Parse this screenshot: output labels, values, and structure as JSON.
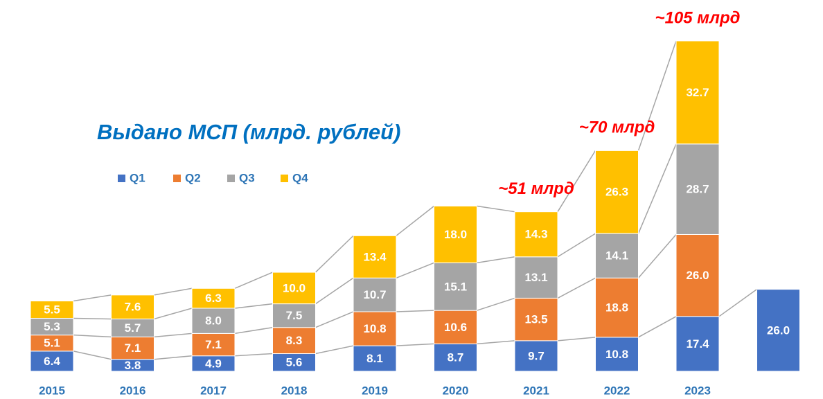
{
  "chart_data": {
    "type": "stacked-bar",
    "title": "Выдано МСП (млрд. рублей)",
    "categories": [
      "2015",
      "2016",
      "2017",
      "2018",
      "2019",
      "2020",
      "2021",
      "2022",
      "2023",
      null
    ],
    "series": [
      {
        "name": "Q1",
        "color": "#4472c4",
        "values": [
          6.4,
          3.8,
          4.9,
          5.6,
          8.1,
          8.7,
          9.7,
          10.8,
          17.4,
          26.0
        ],
        "value_labels": [
          "6.4",
          "3.8",
          "4.9",
          "5.6",
          "8.1",
          "8.7",
          "9.7",
          "10.8",
          "17.4",
          "26.0"
        ]
      },
      {
        "name": "Q2",
        "color": "#ed7d31",
        "values": [
          5.1,
          7.1,
          7.1,
          8.3,
          10.8,
          10.6,
          13.5,
          18.8,
          26.0,
          null
        ],
        "value_labels": [
          "5.1",
          "7.1",
          "7.1",
          "8.3",
          "10.8",
          "10.6",
          "13.5",
          "18.8",
          "26.0",
          null
        ]
      },
      {
        "name": "Q3",
        "color": "#a5a5a5",
        "values": [
          5.3,
          5.7,
          8.0,
          7.5,
          10.7,
          15.1,
          13.1,
          14.1,
          28.7,
          null
        ],
        "value_labels": [
          "5.3",
          "5.7",
          "8.0",
          "7.5",
          "10.7",
          "15.1",
          "13.1",
          "14.1",
          "28.7",
          null
        ]
      },
      {
        "name": "Q4",
        "color": "#ffc000",
        "values": [
          5.5,
          7.6,
          6.3,
          10.0,
          13.4,
          18.0,
          14.3,
          26.3,
          32.7,
          null
        ],
        "value_labels": [
          "5.5",
          "7.6",
          "6.3",
          "10.0",
          "13.4",
          "18.0",
          "14.3",
          "26.3",
          "32.7",
          null
        ]
      }
    ],
    "annotations": [
      {
        "text": "~51 млрд",
        "category": "2021"
      },
      {
        "text": "~70 млрд",
        "category": "2022"
      },
      {
        "text": "~105 млрд",
        "category": "2023"
      }
    ],
    "legend": "top-left"
  }
}
